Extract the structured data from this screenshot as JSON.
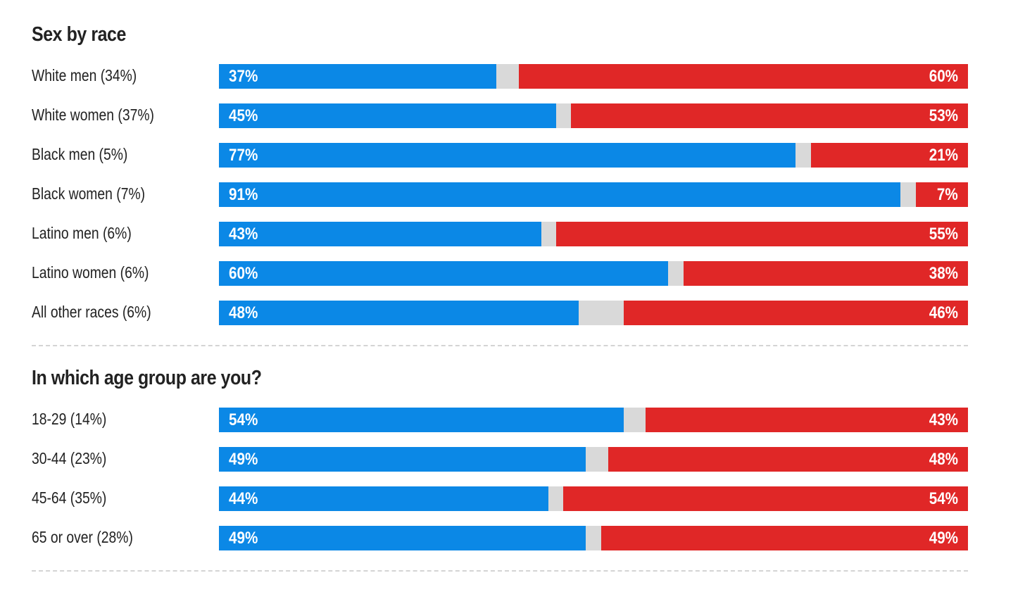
{
  "colors": {
    "dem": "#0b88e6",
    "rep": "#e02727",
    "other": "#d9d9d9",
    "text": "#222222",
    "divider": "#d4d4d4"
  },
  "chart_data": [
    {
      "type": "bar",
      "orientation": "horizontal-stacked",
      "title": "Sex by race",
      "categories": [
        "White men (34%)",
        "White women (37%)",
        "Black men (5%)",
        "Black women (7%)",
        "Latino men (6%)",
        "Latino women (6%)",
        "All other races (6%)"
      ],
      "series": [
        {
          "values": [
            37,
            45,
            77,
            91,
            43,
            60,
            48
          ]
        },
        {
          "values": [
            60,
            53,
            21,
            7,
            55,
            38,
            46
          ]
        }
      ],
      "value_labels_left": [
        "37%",
        "45%",
        "77%",
        "91%",
        "43%",
        "60%",
        "48%"
      ],
      "value_labels_right": [
        "60%",
        "53%",
        "21%",
        "7%",
        "55%",
        "38%",
        "46%"
      ],
      "xlim": [
        0,
        100
      ],
      "grid": false
    },
    {
      "type": "bar",
      "orientation": "horizontal-stacked",
      "title": "In which age group are you?",
      "categories": [
        "18-29 (14%)",
        "30-44 (23%)",
        "45-64 (35%)",
        "65 or over (28%)"
      ],
      "series": [
        {
          "values": [
            54,
            49,
            44,
            49
          ]
        },
        {
          "values": [
            43,
            48,
            54,
            49
          ]
        }
      ],
      "value_labels_left": [
        "54%",
        "49%",
        "44%",
        "49%"
      ],
      "value_labels_right": [
        "43%",
        "48%",
        "54%",
        "49%"
      ],
      "xlim": [
        0,
        100
      ],
      "grid": false
    }
  ]
}
